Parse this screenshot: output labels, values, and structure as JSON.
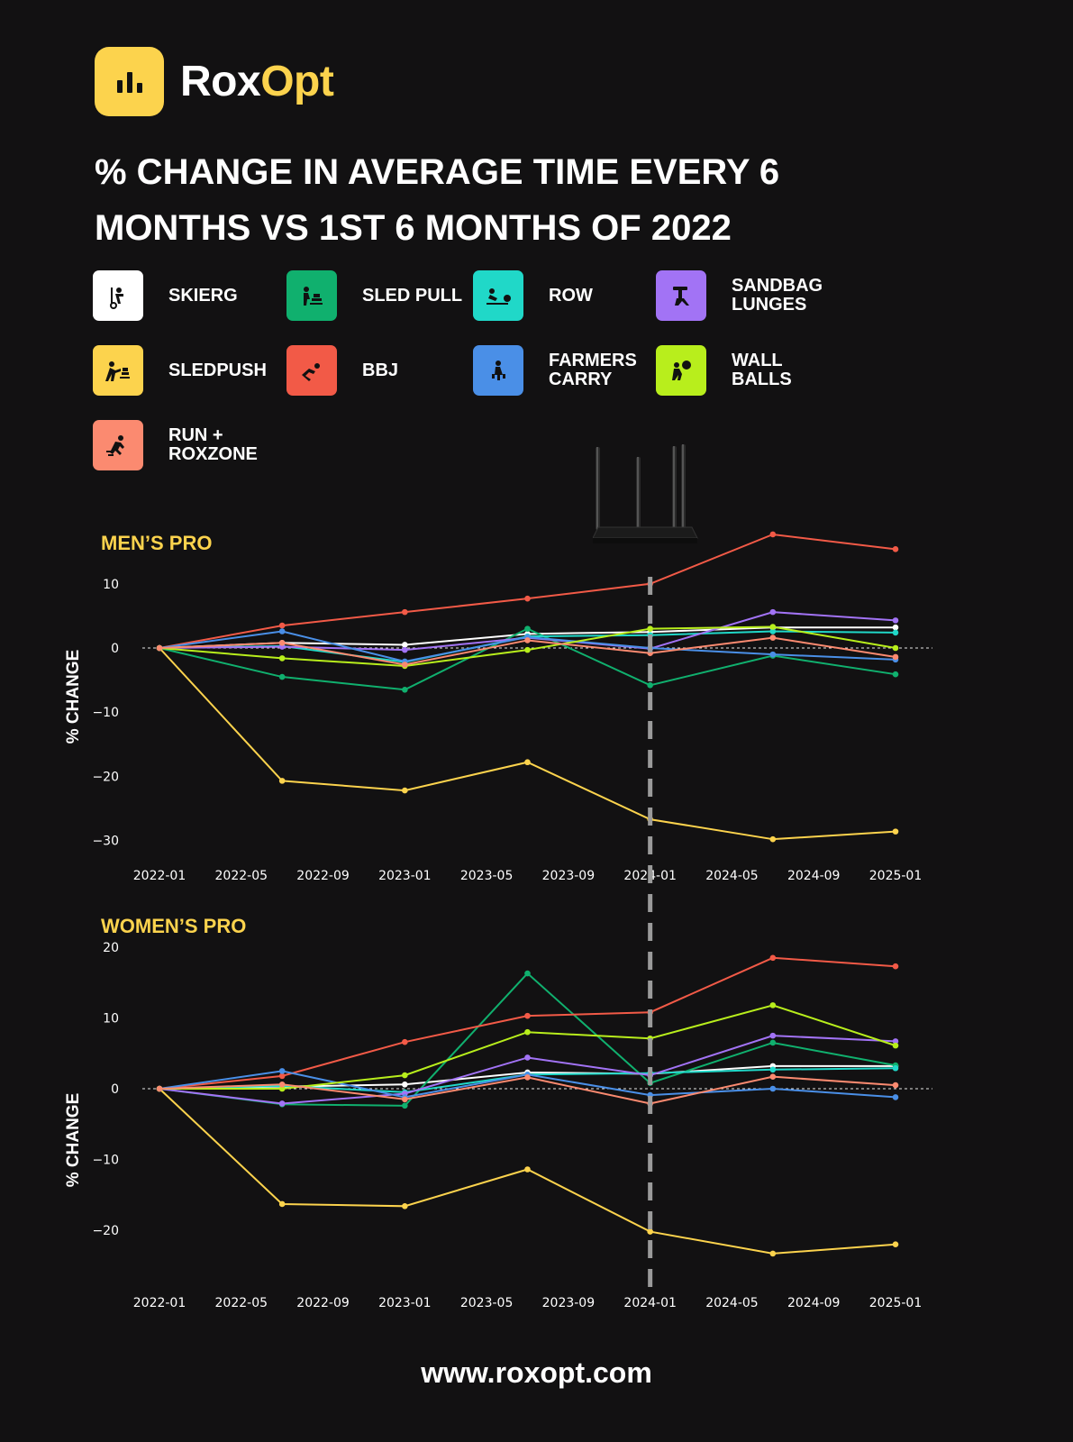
{
  "brand": {
    "name_part1": "Rox",
    "name_part2": "Opt",
    "accent": "#fcd34d"
  },
  "title": "% change in average time every 6 months vs 1st 6 months of 2022",
  "legend": [
    {
      "label": "SKIERG",
      "color": "#ffffff",
      "icon": "skierg-icon"
    },
    {
      "label": "SLED PULL",
      "color": "#10b06e",
      "icon": "sled-pull-icon"
    },
    {
      "label": "ROW",
      "color": "#20d8c8",
      "icon": "row-icon"
    },
    {
      "label": "SANDBAG\nLUNGES",
      "color": "#a273f5",
      "icon": "sandbag-lunges-icon"
    },
    {
      "label": "SLEDPUSH",
      "color": "#fcd34d",
      "icon": "sled-push-icon"
    },
    {
      "label": "BBJ",
      "color": "#f25a47",
      "icon": "burpee-broad-jump-icon"
    },
    {
      "label": "FARMERS\nCARRY",
      "color": "#4a8fe7",
      "icon": "farmers-carry-icon"
    },
    {
      "label": "WALL BALLS",
      "color": "#b8ee1c",
      "icon": "wall-balls-icon"
    },
    {
      "label": "RUN +\nROXZONE",
      "color": "#fb8a70",
      "icon": "run-roxzone-icon"
    }
  ],
  "footer": "www.roxopt.com",
  "chart_data": [
    {
      "type": "line",
      "title": "MEN’S PRO",
      "ylabel": "% CHANGE",
      "xlabel": "",
      "x": [
        "2022-01",
        "2022-07",
        "2023-01",
        "2023-07",
        "2024-01",
        "2024-07",
        "2025-01"
      ],
      "x_ticks": [
        "2022-01",
        "2022-05",
        "2022-09",
        "2023-01",
        "2023-05",
        "2023-09",
        "2024-01",
        "2024-05",
        "2024-09",
        "2025-01"
      ],
      "y_ticks": [
        10,
        0,
        -10,
        -20,
        -30
      ],
      "ylim": [
        -31,
        17
      ],
      "reference_line_y": 0,
      "vertical_marker_x": "2024-01",
      "series": [
        {
          "name": "SKIERG",
          "color": "#ffffff",
          "values": [
            0,
            0.8,
            0.5,
            2.2,
            2.5,
            3.2,
            3.2
          ]
        },
        {
          "name": "SLED PULL",
          "color": "#10b06e",
          "values": [
            0,
            -4.5,
            -6.5,
            3.0,
            -5.8,
            -1.2,
            -4.1
          ]
        },
        {
          "name": "ROW",
          "color": "#20d8c8",
          "values": [
            0,
            0.3,
            -2.2,
            1.8,
            2.0,
            2.6,
            2.4
          ]
        },
        {
          "name": "SANDBAG LUNGES",
          "color": "#a273f5",
          "values": [
            0,
            0.2,
            -0.3,
            1.6,
            -0.1,
            5.6,
            4.3
          ]
        },
        {
          "name": "SLEDPUSH",
          "color": "#fcd34d",
          "values": [
            0,
            -20.7,
            -22.2,
            -17.8,
            -26.7,
            -29.8,
            -28.6
          ]
        },
        {
          "name": "BBJ",
          "color": "#f25a47",
          "values": [
            0,
            3.5,
            5.6,
            7.7,
            10.0,
            17.7,
            15.4
          ]
        },
        {
          "name": "FARMERS CARRY",
          "color": "#4a8fe7",
          "values": [
            0,
            2.6,
            -2.1,
            1.7,
            0.0,
            -1.0,
            -1.8
          ]
        },
        {
          "name": "WALL BALLS",
          "color": "#b8ee1c",
          "values": [
            0,
            -1.6,
            -2.8,
            -0.3,
            3.0,
            3.3,
            0.0
          ]
        },
        {
          "name": "RUN + ROXZONE",
          "color": "#fb8a70",
          "values": [
            0,
            0.8,
            -2.6,
            1.2,
            -0.8,
            1.6,
            -1.4
          ]
        }
      ]
    },
    {
      "type": "line",
      "title": "WOMEN’S PRO",
      "ylabel": "% CHANGE",
      "xlabel": "",
      "x": [
        "2022-01",
        "2022-07",
        "2023-01",
        "2023-07",
        "2024-01",
        "2024-07",
        "2025-01"
      ],
      "x_ticks": [
        "2022-01",
        "2022-05",
        "2022-09",
        "2023-01",
        "2023-05",
        "2023-09",
        "2024-01",
        "2024-05",
        "2024-09",
        "2025-01"
      ],
      "y_ticks": [
        20,
        10,
        0,
        -10,
        -20
      ],
      "ylim": [
        -25.7,
        22.7
      ],
      "reference_line_y": 0,
      "vertical_marker_x": "2024-01",
      "series": [
        {
          "name": "SKIERG",
          "color": "#ffffff",
          "values": [
            0,
            0.3,
            0.6,
            2.3,
            2.1,
            3.2,
            3.2
          ]
        },
        {
          "name": "SLED PULL",
          "color": "#10b06e",
          "values": [
            0,
            -2.2,
            -2.4,
            16.3,
            0.8,
            6.5,
            3.3
          ]
        },
        {
          "name": "ROW",
          "color": "#20d8c8",
          "values": [
            0,
            0.4,
            -0.5,
            2.0,
            2.2,
            2.7,
            2.9
          ]
        },
        {
          "name": "SANDBAG LUNGES",
          "color": "#a273f5",
          "values": [
            0,
            -2.1,
            -0.7,
            4.4,
            1.9,
            7.5,
            6.7
          ]
        },
        {
          "name": "SLEDPUSH",
          "color": "#fcd34d",
          "values": [
            0,
            -16.3,
            -16.6,
            -11.4,
            -20.2,
            -23.3,
            -22.0
          ]
        },
        {
          "name": "BBJ",
          "color": "#f25a47",
          "values": [
            0,
            1.8,
            6.6,
            10.3,
            10.8,
            18.5,
            17.3
          ]
        },
        {
          "name": "FARMERS CARRY",
          "color": "#4a8fe7",
          "values": [
            0,
            2.5,
            -1.2,
            2.0,
            -0.9,
            0.0,
            -1.2
          ]
        },
        {
          "name": "WALL BALLS",
          "color": "#b8ee1c",
          "values": [
            0,
            0.0,
            1.9,
            8.0,
            7.1,
            11.8,
            6.1
          ]
        },
        {
          "name": "RUN + ROXZONE",
          "color": "#fb8a70",
          "values": [
            0,
            0.6,
            -1.5,
            1.6,
            -2.1,
            1.7,
            0.5
          ]
        }
      ]
    }
  ]
}
